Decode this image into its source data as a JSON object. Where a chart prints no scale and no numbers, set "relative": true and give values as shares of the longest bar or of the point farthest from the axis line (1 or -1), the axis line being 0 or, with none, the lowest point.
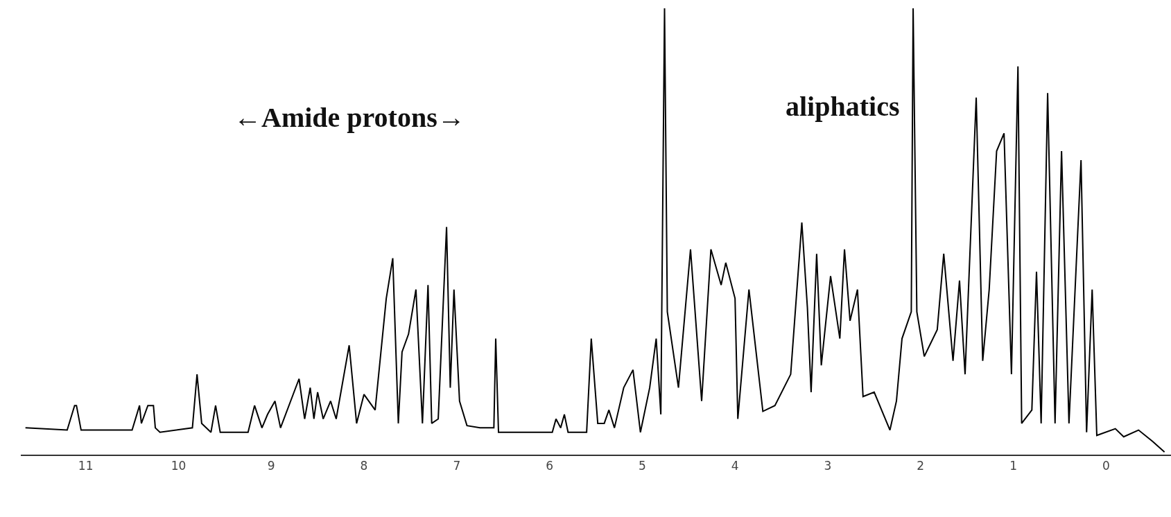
{
  "chart_data": {
    "type": "line",
    "relative": true,
    "color": "#000000",
    "grid": false,
    "legend": false,
    "marker": "none",
    "line_style": "solid",
    "tick_labels": "x",
    "annotations": [
      "←Amide protons→",
      "aliphatics"
    ],
    "xlim": [
      11.7,
      -0.7
    ],
    "xticks": [
      11,
      10,
      9,
      8,
      7,
      6,
      5,
      4,
      3,
      2,
      1,
      0
    ],
    "x": [
      11.65,
      11.2,
      11.12,
      11.1,
      11.05,
      10.5,
      10.42,
      10.4,
      10.33,
      10.27,
      10.25,
      10.2,
      9.85,
      9.8,
      9.75,
      9.65,
      9.6,
      9.55,
      9.25,
      9.18,
      9.1,
      9.04,
      8.96,
      8.9,
      8.7,
      8.64,
      8.58,
      8.54,
      8.5,
      8.44,
      8.36,
      8.3,
      8.16,
      8.08,
      8.0,
      7.88,
      7.76,
      7.69,
      7.63,
      7.59,
      7.52,
      7.44,
      7.37,
      7.31,
      7.27,
      7.2,
      7.11,
      7.07,
      7.03,
      6.97,
      6.89,
      6.75,
      6.6,
      6.58,
      6.55,
      5.97,
      5.93,
      5.88,
      5.84,
      5.8,
      5.6,
      5.55,
      5.48,
      5.41,
      5.36,
      5.3,
      5.2,
      5.1,
      5.02,
      4.92,
      4.85,
      4.8,
      4.76,
      4.73,
      4.61,
      4.48,
      4.36,
      4.26,
      4.15,
      4.1,
      4.0,
      3.97,
      3.85,
      3.7,
      3.57,
      3.4,
      3.28,
      3.22,
      3.18,
      3.12,
      3.07,
      2.97,
      2.87,
      2.82,
      2.76,
      2.68,
      2.62,
      2.5,
      2.33,
      2.26,
      2.2,
      2.1,
      2.08,
      2.04,
      1.96,
      1.82,
      1.75,
      1.65,
      1.58,
      1.52,
      1.4,
      1.33,
      1.26,
      1.18,
      1.1,
      1.02,
      0.95,
      0.91,
      0.8,
      0.75,
      0.7,
      0.63,
      0.55,
      0.48,
      0.4,
      0.27,
      0.21,
      0.15,
      0.1,
      -0.1,
      -0.19,
      -0.35,
      -0.5,
      -0.63
    ],
    "values": [
      0.06,
      0.055,
      0.11,
      0.11,
      0.055,
      0.055,
      0.11,
      0.07,
      0.11,
      0.11,
      0.06,
      0.05,
      0.06,
      0.18,
      0.07,
      0.05,
      0.11,
      0.05,
      0.05,
      0.11,
      0.06,
      0.09,
      0.12,
      0.06,
      0.17,
      0.08,
      0.15,
      0.08,
      0.14,
      0.08,
      0.12,
      0.08,
      0.245,
      0.07,
      0.135,
      0.1,
      0.35,
      0.44,
      0.07,
      0.23,
      0.27,
      0.37,
      0.07,
      0.38,
      0.07,
      0.08,
      0.51,
      0.15,
      0.37,
      0.12,
      0.065,
      0.06,
      0.06,
      0.26,
      0.05,
      0.05,
      0.08,
      0.06,
      0.09,
      0.05,
      0.05,
      0.26,
      0.07,
      0.07,
      0.1,
      0.06,
      0.15,
      0.19,
      0.05,
      0.15,
      0.26,
      0.09,
      1.0,
      0.32,
      0.15,
      0.46,
      0.12,
      0.46,
      0.38,
      0.43,
      0.35,
      0.08,
      0.37,
      0.097,
      0.11,
      0.18,
      0.52,
      0.33,
      0.14,
      0.45,
      0.2,
      0.4,
      0.26,
      0.46,
      0.3,
      0.37,
      0.13,
      0.14,
      0.055,
      0.12,
      0.26,
      0.32,
      1.0,
      0.32,
      0.22,
      0.28,
      0.45,
      0.21,
      0.39,
      0.18,
      0.8,
      0.21,
      0.37,
      0.68,
      0.72,
      0.18,
      0.87,
      0.07,
      0.1,
      0.41,
      0.07,
      0.81,
      0.07,
      0.68,
      0.07,
      0.66,
      0.05,
      0.37,
      0.043,
      0.058,
      0.04,
      0.055,
      0.03,
      0.006
    ]
  }
}
